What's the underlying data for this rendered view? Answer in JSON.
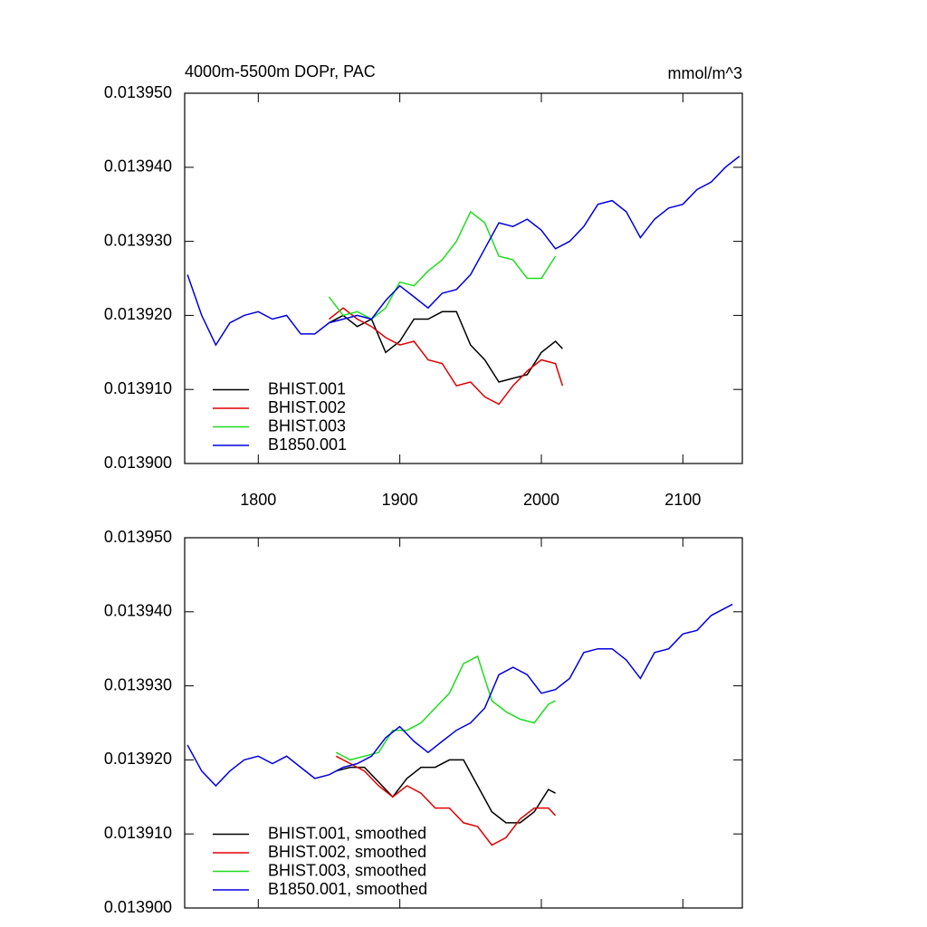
{
  "chart_data": [
    {
      "type": "line",
      "title": "4000m-5500m DOPr, PAC",
      "units": "mmol/m^3",
      "xlim": [
        1748,
        2142
      ],
      "xticks": [
        1800,
        1900,
        2000,
        2100
      ],
      "xtick_labels": true,
      "ylim": [
        0.0139,
        0.01395
      ],
      "yticks": [
        {
          "value": 0.0139,
          "label": "0.013900"
        },
        {
          "value": 0.01391,
          "label": "0.013910"
        },
        {
          "value": 0.01392,
          "label": "0.013920"
        },
        {
          "value": 0.01393,
          "label": "0.013930"
        },
        {
          "value": 0.01394,
          "label": "0.013940"
        },
        {
          "value": 0.01395,
          "label": "0.013950"
        }
      ],
      "legend": "lower left",
      "series": [
        {
          "name": "BHIST.001",
          "color": "#000000",
          "x": [
            1850,
            1860,
            1870,
            1880,
            1890,
            1900,
            1910,
            1920,
            1930,
            1940,
            1950,
            1960,
            1970,
            1980,
            1990,
            2000,
            2010,
            2015
          ],
          "values": [
            0.013919,
            0.01392,
            0.0139185,
            0.0139195,
            0.013915,
            0.0139165,
            0.0139195,
            0.0139195,
            0.0139205,
            0.0139205,
            0.013916,
            0.013914,
            0.013911,
            0.0139115,
            0.013912,
            0.013915,
            0.0139165,
            0.0139155
          ]
        },
        {
          "name": "BHIST.002",
          "color": "#e00000",
          "x": [
            1850,
            1860,
            1870,
            1880,
            1890,
            1900,
            1910,
            1920,
            1930,
            1940,
            1950,
            1960,
            1970,
            1980,
            1990,
            2000,
            2010,
            2015
          ],
          "values": [
            0.0139195,
            0.013921,
            0.0139195,
            0.0139185,
            0.013917,
            0.013916,
            0.0139165,
            0.013914,
            0.0139135,
            0.0139105,
            0.013911,
            0.013909,
            0.013908,
            0.0139105,
            0.0139125,
            0.013914,
            0.0139135,
            0.0139105
          ]
        },
        {
          "name": "BHIST.003",
          "color": "#1fdd1f",
          "x": [
            1850,
            1860,
            1870,
            1880,
            1890,
            1900,
            1910,
            1920,
            1930,
            1940,
            1950,
            1960,
            1970,
            1980,
            1990,
            2000,
            2010
          ],
          "values": [
            0.0139225,
            0.01392,
            0.0139205,
            0.0139195,
            0.013921,
            0.0139245,
            0.013924,
            0.013926,
            0.0139275,
            0.01393,
            0.013934,
            0.0139325,
            0.013928,
            0.0139275,
            0.013925,
            0.013925,
            0.013928
          ]
        },
        {
          "name": "B1850.001",
          "color": "#0000dd",
          "x": [
            1750,
            1760,
            1770,
            1780,
            1790,
            1800,
            1810,
            1820,
            1830,
            1840,
            1850,
            1860,
            1870,
            1880,
            1890,
            1900,
            1910,
            1920,
            1930,
            1940,
            1950,
            1960,
            1970,
            1980,
            1990,
            2000,
            2010,
            2020,
            2030,
            2040,
            2050,
            2060,
            2070,
            2080,
            2090,
            2100,
            2110,
            2120,
            2130,
            2140
          ],
          "values": [
            0.0139255,
            0.01392,
            0.013916,
            0.013919,
            0.01392,
            0.0139205,
            0.0139195,
            0.01392,
            0.0139175,
            0.0139175,
            0.013919,
            0.0139195,
            0.01392,
            0.0139195,
            0.013922,
            0.013924,
            0.0139225,
            0.013921,
            0.013923,
            0.0139235,
            0.0139255,
            0.013929,
            0.0139325,
            0.013932,
            0.013933,
            0.0139315,
            0.013929,
            0.01393,
            0.013932,
            0.013935,
            0.0139355,
            0.013934,
            0.0139305,
            0.013933,
            0.0139345,
            0.013935,
            0.013937,
            0.013938,
            0.01394,
            0.0139415
          ]
        }
      ]
    },
    {
      "type": "line",
      "xlim": [
        1748,
        2142
      ],
      "xticks": [
        1800,
        1900,
        2000,
        2100
      ],
      "xtick_labels": false,
      "ylim": [
        0.0139,
        0.01395
      ],
      "yticks": [
        {
          "value": 0.0139,
          "label": "0.013900"
        },
        {
          "value": 0.01391,
          "label": "0.013910"
        },
        {
          "value": 0.01392,
          "label": "0.013920"
        },
        {
          "value": 0.01393,
          "label": "0.013930"
        },
        {
          "value": 0.01394,
          "label": "0.013940"
        },
        {
          "value": 0.01395,
          "label": "0.013950"
        }
      ],
      "legend": "lower left",
      "series": [
        {
          "name": "BHIST.001, smoothed",
          "color": "#000000",
          "x": [
            1855,
            1865,
            1875,
            1885,
            1895,
            1905,
            1915,
            1925,
            1935,
            1945,
            1955,
            1965,
            1975,
            1985,
            1995,
            2005,
            2010
          ],
          "values": [
            0.0139185,
            0.013919,
            0.013919,
            0.013917,
            0.013915,
            0.0139175,
            0.013919,
            0.013919,
            0.01392,
            0.01392,
            0.0139165,
            0.013913,
            0.0139115,
            0.0139115,
            0.013913,
            0.013916,
            0.0139155
          ]
        },
        {
          "name": "BHIST.002, smoothed",
          "color": "#e00000",
          "x": [
            1855,
            1865,
            1875,
            1885,
            1895,
            1905,
            1915,
            1925,
            1935,
            1945,
            1955,
            1965,
            1975,
            1985,
            1995,
            2005,
            2010
          ],
          "values": [
            0.0139205,
            0.0139195,
            0.0139185,
            0.0139165,
            0.013915,
            0.0139165,
            0.0139155,
            0.0139135,
            0.0139135,
            0.0139115,
            0.013911,
            0.0139085,
            0.0139095,
            0.013912,
            0.0139135,
            0.0139135,
            0.0139125
          ]
        },
        {
          "name": "BHIST.003, smoothed",
          "color": "#1fdd1f",
          "x": [
            1855,
            1865,
            1875,
            1885,
            1895,
            1905,
            1915,
            1925,
            1935,
            1945,
            1955,
            1965,
            1975,
            1985,
            1995,
            2005,
            2010
          ],
          "values": [
            0.013921,
            0.01392,
            0.0139205,
            0.013921,
            0.013924,
            0.013924,
            0.013925,
            0.013927,
            0.013929,
            0.013933,
            0.013934,
            0.013928,
            0.0139265,
            0.0139255,
            0.013925,
            0.0139275,
            0.013928
          ]
        },
        {
          "name": "B1850.001, smoothed",
          "color": "#0000dd",
          "x": [
            1750,
            1760,
            1770,
            1780,
            1790,
            1800,
            1810,
            1820,
            1830,
            1840,
            1850,
            1860,
            1870,
            1880,
            1890,
            1900,
            1910,
            1920,
            1930,
            1940,
            1950,
            1960,
            1970,
            1980,
            1990,
            2000,
            2010,
            2020,
            2030,
            2040,
            2050,
            2060,
            2070,
            2080,
            2090,
            2100,
            2110,
            2120,
            2130,
            2135
          ],
          "values": [
            0.013922,
            0.0139185,
            0.0139165,
            0.0139185,
            0.01392,
            0.0139205,
            0.0139195,
            0.0139205,
            0.013919,
            0.0139175,
            0.013918,
            0.013919,
            0.0139195,
            0.0139205,
            0.013923,
            0.0139245,
            0.0139225,
            0.013921,
            0.0139225,
            0.013924,
            0.013925,
            0.013927,
            0.0139315,
            0.0139325,
            0.0139315,
            0.013929,
            0.0139295,
            0.013931,
            0.0139345,
            0.013935,
            0.013935,
            0.0139335,
            0.013931,
            0.0139345,
            0.013935,
            0.013937,
            0.0139375,
            0.0139395,
            0.0139405,
            0.013941
          ]
        }
      ]
    }
  ]
}
